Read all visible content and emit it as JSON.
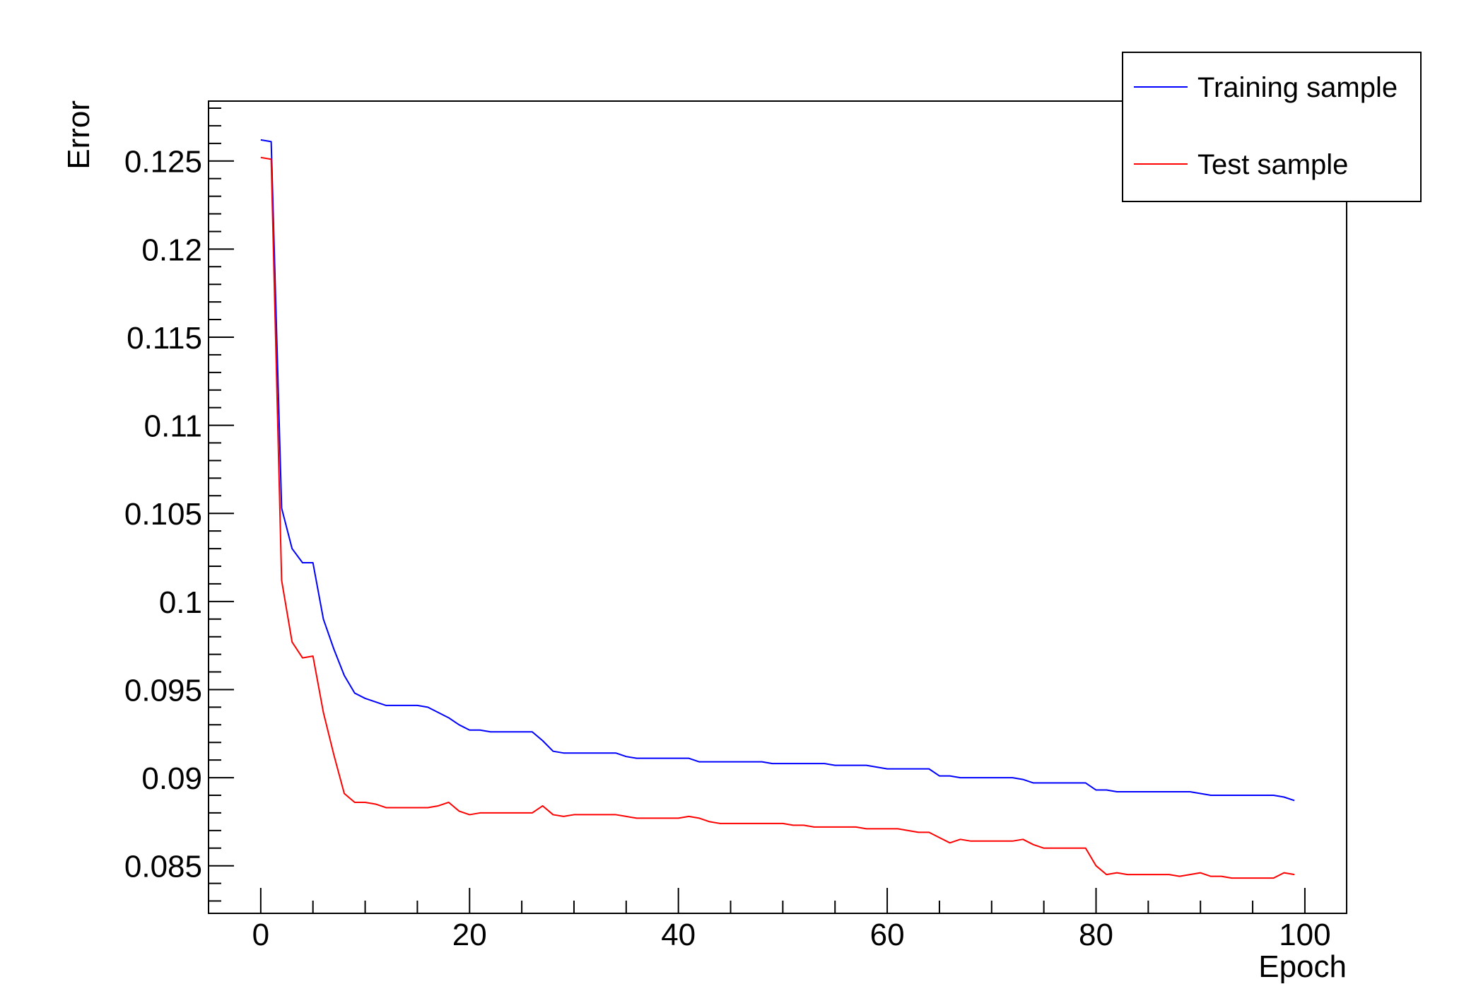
{
  "chart_data": {
    "type": "line",
    "title": "",
    "xlabel": "Epoch",
    "ylabel": "Error",
    "xlim": [
      -5,
      104
    ],
    "ylim": [
      0.0823,
      0.1284
    ],
    "x_ticks": [
      0,
      20,
      40,
      60,
      80,
      100
    ],
    "x_tick_labels": [
      "0",
      "20",
      "40",
      "60",
      "80",
      "100"
    ],
    "y_ticks": [
      0.085,
      0.09,
      0.095,
      0.1,
      0.105,
      0.11,
      0.115,
      0.12,
      0.125
    ],
    "y_tick_labels": [
      "0.085",
      "0.09",
      "0.095",
      "0.1",
      "0.105",
      "0.11",
      "0.115",
      "0.12",
      "0.125"
    ],
    "grid": false,
    "legend_position": "top-right",
    "series": [
      {
        "name": "Training sample",
        "color": "#0000ff",
        "x": [
          0,
          1,
          2,
          3,
          4,
          5,
          6,
          7,
          8,
          9,
          10,
          11,
          12,
          13,
          14,
          15,
          16,
          17,
          18,
          19,
          20,
          21,
          22,
          23,
          24,
          25,
          26,
          27,
          28,
          29,
          30,
          31,
          32,
          33,
          34,
          35,
          36,
          37,
          38,
          39,
          40,
          41,
          42,
          43,
          44,
          45,
          46,
          47,
          48,
          49,
          50,
          51,
          52,
          53,
          54,
          55,
          56,
          57,
          58,
          59,
          60,
          61,
          62,
          63,
          64,
          65,
          66,
          67,
          68,
          69,
          70,
          71,
          72,
          73,
          74,
          75,
          76,
          77,
          78,
          79,
          80,
          81,
          82,
          83,
          84,
          85,
          86,
          87,
          88,
          89,
          90,
          91,
          92,
          93,
          94,
          95,
          96,
          97,
          98,
          99
        ],
        "y": [
          0.1262,
          0.1261,
          0.1053,
          0.103,
          0.1022,
          0.1022,
          0.099,
          0.0973,
          0.0958,
          0.0948,
          0.0945,
          0.0943,
          0.0941,
          0.0941,
          0.0941,
          0.0941,
          0.094,
          0.0937,
          0.0934,
          0.093,
          0.0927,
          0.0927,
          0.0926,
          0.0926,
          0.0926,
          0.0926,
          0.0926,
          0.0921,
          0.0915,
          0.0914,
          0.0914,
          0.0914,
          0.0914,
          0.0914,
          0.0914,
          0.0912,
          0.0911,
          0.0911,
          0.0911,
          0.0911,
          0.0911,
          0.0911,
          0.0909,
          0.0909,
          0.0909,
          0.0909,
          0.0909,
          0.0909,
          0.0909,
          0.0908,
          0.0908,
          0.0908,
          0.0908,
          0.0908,
          0.0908,
          0.0907,
          0.0907,
          0.0907,
          0.0907,
          0.0906,
          0.0905,
          0.0905,
          0.0905,
          0.0905,
          0.0905,
          0.0901,
          0.0901,
          0.09,
          0.09,
          0.09,
          0.09,
          0.09,
          0.09,
          0.0899,
          0.0897,
          0.0897,
          0.0897,
          0.0897,
          0.0897,
          0.0897,
          0.0893,
          0.0893,
          0.0892,
          0.0892,
          0.0892,
          0.0892,
          0.0892,
          0.0892,
          0.0892,
          0.0892,
          0.0891,
          0.089,
          0.089,
          0.089,
          0.089,
          0.089,
          0.089,
          0.089,
          0.0889,
          0.0887
        ]
      },
      {
        "name": "Test sample",
        "color": "#ff0000",
        "x": [
          0,
          1,
          2,
          3,
          4,
          5,
          6,
          7,
          8,
          9,
          10,
          11,
          12,
          13,
          14,
          15,
          16,
          17,
          18,
          19,
          20,
          21,
          22,
          23,
          24,
          25,
          26,
          27,
          28,
          29,
          30,
          31,
          32,
          33,
          34,
          35,
          36,
          37,
          38,
          39,
          40,
          41,
          42,
          43,
          44,
          45,
          46,
          47,
          48,
          49,
          50,
          51,
          52,
          53,
          54,
          55,
          56,
          57,
          58,
          59,
          60,
          61,
          62,
          63,
          64,
          65,
          66,
          67,
          68,
          69,
          70,
          71,
          72,
          73,
          74,
          75,
          76,
          77,
          78,
          79,
          80,
          81,
          82,
          83,
          84,
          85,
          86,
          87,
          88,
          89,
          90,
          91,
          92,
          93,
          94,
          95,
          96,
          97,
          98,
          99
        ],
        "y": [
          0.1252,
          0.1251,
          0.1012,
          0.0977,
          0.0968,
          0.0969,
          0.0937,
          0.0913,
          0.0891,
          0.0886,
          0.0886,
          0.0885,
          0.0883,
          0.0883,
          0.0883,
          0.0883,
          0.0883,
          0.0884,
          0.0886,
          0.0881,
          0.0879,
          0.088,
          0.088,
          0.088,
          0.088,
          0.088,
          0.088,
          0.0884,
          0.0879,
          0.0878,
          0.0879,
          0.0879,
          0.0879,
          0.0879,
          0.0879,
          0.0878,
          0.0877,
          0.0877,
          0.0877,
          0.0877,
          0.0877,
          0.0878,
          0.0877,
          0.0875,
          0.0874,
          0.0874,
          0.0874,
          0.0874,
          0.0874,
          0.0874,
          0.0874,
          0.0873,
          0.0873,
          0.0872,
          0.0872,
          0.0872,
          0.0872,
          0.0872,
          0.0871,
          0.0871,
          0.0871,
          0.0871,
          0.087,
          0.0869,
          0.0869,
          0.0866,
          0.0863,
          0.0865,
          0.0864,
          0.0864,
          0.0864,
          0.0864,
          0.0864,
          0.0865,
          0.0862,
          0.086,
          0.086,
          0.086,
          0.086,
          0.086,
          0.085,
          0.0845,
          0.0846,
          0.0845,
          0.0845,
          0.0845,
          0.0845,
          0.0845,
          0.0844,
          0.0845,
          0.0846,
          0.0844,
          0.0844,
          0.0843,
          0.0843,
          0.0843,
          0.0843,
          0.0843,
          0.0846,
          0.0845
        ]
      }
    ]
  }
}
